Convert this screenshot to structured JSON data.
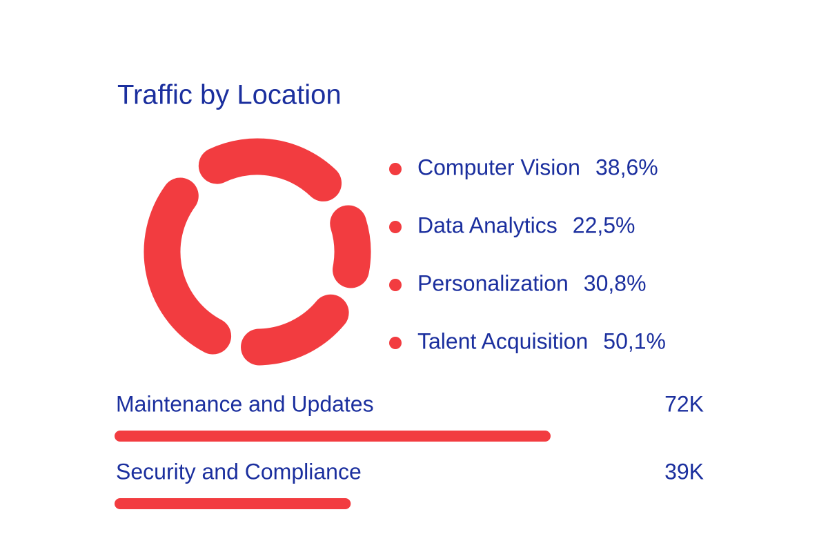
{
  "title": "Traffic by Location",
  "donut": {
    "type": "pie",
    "color": "#f23c40",
    "categories": [
      "Computer Vision",
      "Data Analytics",
      "Personalization",
      "Talent Acquisition"
    ],
    "values": [
      38.6,
      22.5,
      30.8,
      50.1
    ],
    "value_labels": [
      "38,6%",
      "22,5%",
      "30,8%",
      "50,1%"
    ]
  },
  "bars": {
    "type": "bar",
    "color": "#f23c40",
    "categories": [
      "Maintenance and Updates",
      "Security and Compliance"
    ],
    "values": [
      72000,
      39000
    ],
    "value_labels": [
      "72K",
      "39K"
    ]
  }
}
